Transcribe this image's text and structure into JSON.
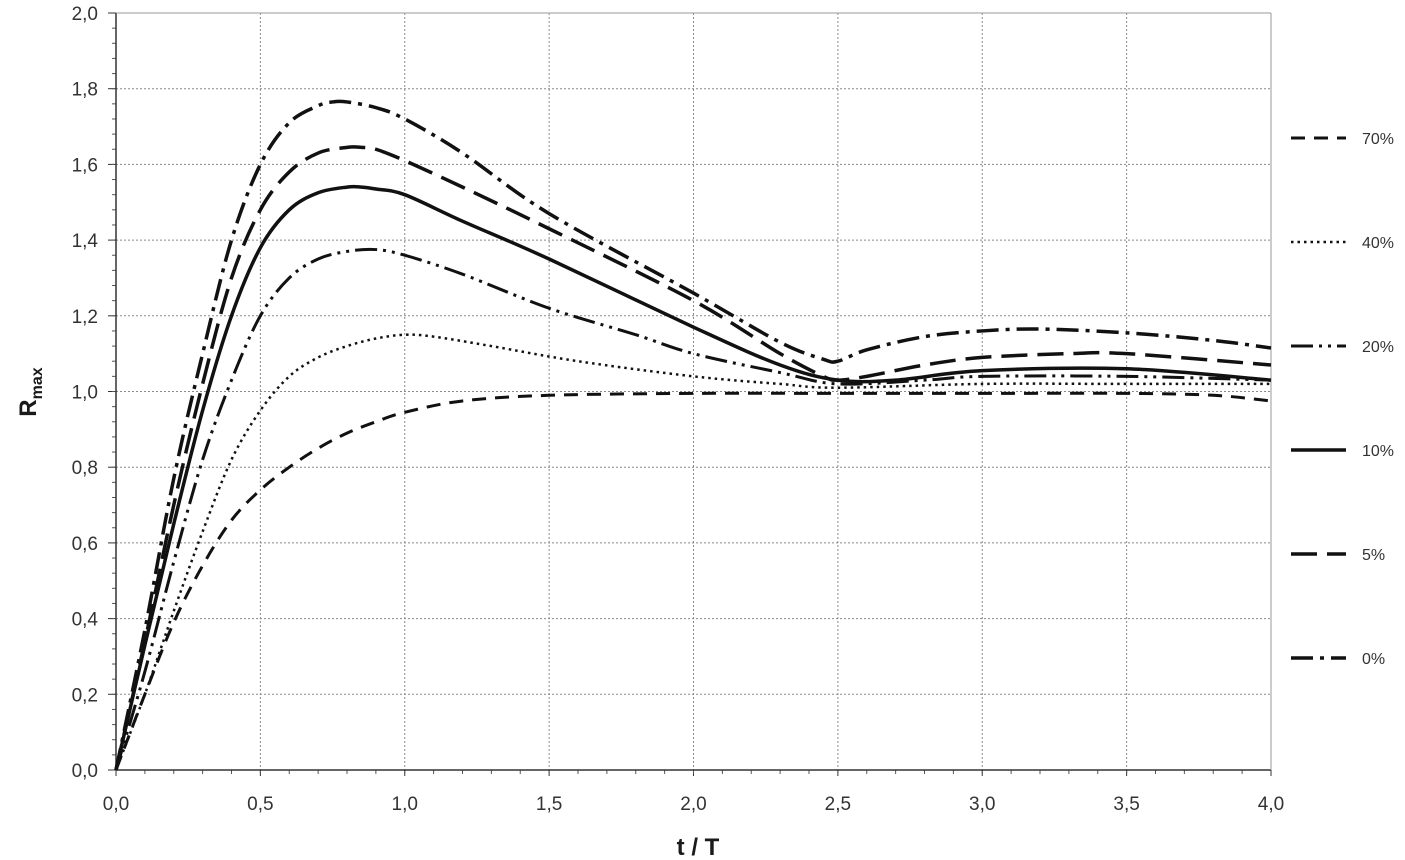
{
  "chart_data": {
    "type": "line",
    "title": "",
    "xlabel": "t / T",
    "ylabel_main": "R",
    "ylabel_sub": "max",
    "xlim": [
      0,
      4
    ],
    "ylim": [
      0,
      2
    ],
    "x_ticks": [
      "0,0",
      "0,5",
      "1,0",
      "1,5",
      "2,0",
      "2,5",
      "3,0",
      "3,5",
      "4,0"
    ],
    "y_ticks": [
      "0,0",
      "0,2",
      "0,4",
      "0,6",
      "0,8",
      "1,0",
      "1,2",
      "1,4",
      "1,6",
      "1,8",
      "2,0"
    ],
    "grid": true,
    "legend_position": "right",
    "series": [
      {
        "name": "70%",
        "style": "dashed-short",
        "x": [
          0,
          0.1,
          0.2,
          0.3,
          0.4,
          0.5,
          0.6,
          0.7,
          0.8,
          0.9,
          1.0,
          1.2,
          1.5,
          2.0,
          2.5,
          3.0,
          3.5,
          3.8,
          4.0
        ],
        "y": [
          0,
          0.2,
          0.39,
          0.54,
          0.66,
          0.74,
          0.8,
          0.85,
          0.89,
          0.92,
          0.945,
          0.975,
          0.99,
          0.995,
          0.995,
          0.995,
          0.995,
          0.99,
          0.975
        ]
      },
      {
        "name": "40%",
        "style": "dotted",
        "x": [
          0,
          0.1,
          0.2,
          0.3,
          0.4,
          0.5,
          0.6,
          0.7,
          0.8,
          0.9,
          1.0,
          1.1,
          1.3,
          1.6,
          2.0,
          2.3,
          2.5,
          3.0,
          3.5,
          4.0
        ],
        "y": [
          0,
          0.2,
          0.42,
          0.63,
          0.82,
          0.95,
          1.04,
          1.09,
          1.12,
          1.14,
          1.15,
          1.145,
          1.12,
          1.08,
          1.04,
          1.02,
          1.01,
          1.02,
          1.02,
          1.02
        ]
      },
      {
        "name": "20%",
        "style": "dash-dot-dot",
        "x": [
          0,
          0.1,
          0.2,
          0.3,
          0.4,
          0.5,
          0.6,
          0.7,
          0.8,
          0.9,
          1.0,
          1.2,
          1.5,
          1.8,
          2.0,
          2.3,
          2.5,
          2.8,
          3.0,
          3.5,
          4.0
        ],
        "y": [
          0,
          0.26,
          0.55,
          0.82,
          1.03,
          1.2,
          1.3,
          1.35,
          1.37,
          1.375,
          1.36,
          1.31,
          1.22,
          1.15,
          1.1,
          1.05,
          1.02,
          1.03,
          1.04,
          1.04,
          1.03
        ]
      },
      {
        "name": "10%",
        "style": "solid",
        "x": [
          0,
          0.1,
          0.2,
          0.3,
          0.4,
          0.5,
          0.6,
          0.7,
          0.8,
          0.85,
          0.9,
          1.0,
          1.2,
          1.5,
          2.0,
          2.3,
          2.5,
          2.7,
          3.0,
          3.5,
          4.0
        ],
        "y": [
          0,
          0.33,
          0.65,
          0.95,
          1.2,
          1.38,
          1.48,
          1.525,
          1.54,
          1.54,
          1.535,
          1.52,
          1.45,
          1.35,
          1.17,
          1.07,
          1.03,
          1.03,
          1.055,
          1.06,
          1.03
        ]
      },
      {
        "name": "5%",
        "style": "dashed-long",
        "x": [
          0,
          0.1,
          0.2,
          0.3,
          0.4,
          0.5,
          0.6,
          0.7,
          0.8,
          0.85,
          0.9,
          1.0,
          1.2,
          1.5,
          2.0,
          2.3,
          2.45,
          2.5,
          2.6,
          2.8,
          3.0,
          3.3,
          3.5,
          4.0
        ],
        "y": [
          0,
          0.34,
          0.7,
          1.02,
          1.3,
          1.48,
          1.58,
          1.63,
          1.645,
          1.645,
          1.64,
          1.61,
          1.54,
          1.43,
          1.24,
          1.1,
          1.04,
          1.03,
          1.04,
          1.07,
          1.09,
          1.1,
          1.1,
          1.07
        ]
      },
      {
        "name": "0%",
        "style": "dash-dot",
        "x": [
          0,
          0.1,
          0.2,
          0.3,
          0.4,
          0.5,
          0.6,
          0.7,
          0.75,
          0.8,
          0.9,
          1.0,
          1.2,
          1.5,
          2.0,
          2.3,
          2.45,
          2.5,
          2.6,
          2.8,
          3.0,
          3.2,
          3.5,
          3.8,
          4.0
        ],
        "y": [
          0,
          0.37,
          0.77,
          1.1,
          1.4,
          1.6,
          1.71,
          1.755,
          1.765,
          1.765,
          1.75,
          1.72,
          1.63,
          1.47,
          1.26,
          1.13,
          1.085,
          1.08,
          1.11,
          1.145,
          1.16,
          1.165,
          1.155,
          1.135,
          1.115
        ]
      }
    ]
  }
}
